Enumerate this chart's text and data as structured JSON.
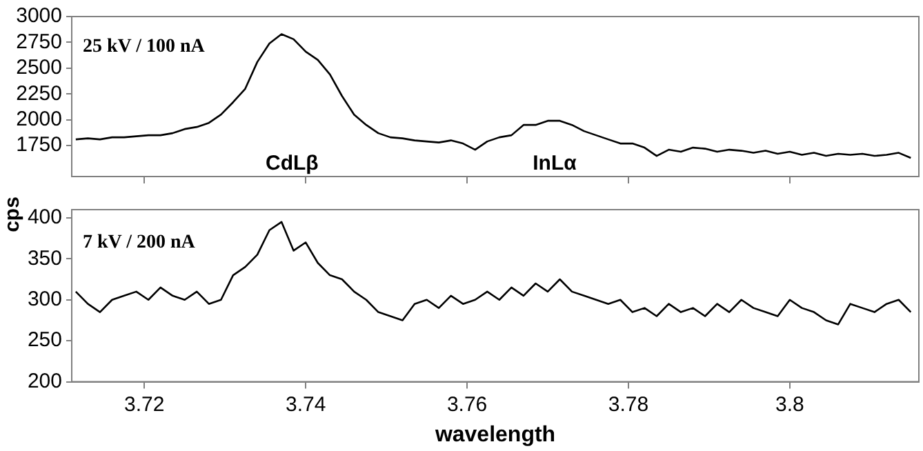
{
  "chart_data": [
    {
      "type": "line",
      "ylim": [
        1450,
        3000
      ],
      "yticks": [
        1750,
        2000,
        2250,
        2500,
        2750,
        3000
      ],
      "xlim": [
        3.711,
        3.816
      ],
      "xticks": [
        3.72,
        3.74,
        3.76,
        3.78,
        3.8
      ],
      "tick_labels": "y",
      "grid": false,
      "legend": false,
      "marker": "none",
      "x": [
        3.7115,
        3.713,
        3.7145,
        3.716,
        3.7175,
        3.719,
        3.7205,
        3.722,
        3.7235,
        3.725,
        3.7265,
        3.728,
        3.7295,
        3.731,
        3.7325,
        3.734,
        3.7355,
        3.737,
        3.7385,
        3.74,
        3.7415,
        3.743,
        3.7445,
        3.746,
        3.7475,
        3.749,
        3.7505,
        3.752,
        3.7535,
        3.755,
        3.7565,
        3.758,
        3.7595,
        3.761,
        3.7625,
        3.764,
        3.7655,
        3.767,
        3.7685,
        3.77,
        3.7715,
        3.773,
        3.7745,
        3.776,
        3.7775,
        3.779,
        3.7805,
        3.782,
        3.7835,
        3.785,
        3.7865,
        3.788,
        3.7895,
        3.791,
        3.7925,
        3.794,
        3.7955,
        3.797,
        3.7985,
        3.8,
        3.8015,
        3.803,
        3.8045,
        3.806,
        3.8075,
        3.809,
        3.8105,
        3.812,
        3.8135,
        3.815
      ],
      "series": [
        {
          "color": "#000000",
          "values": [
            1810,
            1820,
            1810,
            1830,
            1830,
            1840,
            1850,
            1850,
            1870,
            1910,
            1930,
            1970,
            2050,
            2170,
            2300,
            2560,
            2740,
            2830,
            2780,
            2660,
            2580,
            2440,
            2230,
            2050,
            1950,
            1870,
            1830,
            1820,
            1800,
            1790,
            1780,
            1800,
            1770,
            1710,
            1790,
            1830,
            1850,
            1950,
            1950,
            1990,
            1990,
            1950,
            1890,
            1850,
            1810,
            1770,
            1770,
            1730,
            1650,
            1710,
            1690,
            1730,
            1720,
            1690,
            1710,
            1700,
            1680,
            1700,
            1670,
            1690,
            1660,
            1680,
            1650,
            1670,
            1660,
            1670,
            1650,
            1660,
            1680,
            1630
          ]
        }
      ],
      "annotations": [
        "25 kV / 100 nA",
        "CdLβ",
        "InLα"
      ]
    },
    {
      "type": "line",
      "ylim": [
        200,
        410
      ],
      "yticks": [
        200,
        250,
        300,
        350,
        400
      ],
      "xlim": [
        3.711,
        3.816
      ],
      "xticks": [
        3.72,
        3.74,
        3.76,
        3.78,
        3.8
      ],
      "grid": false,
      "legend": false,
      "marker": "none",
      "xlabel": "wavelength",
      "ylabel": "cps",
      "x": [
        3.7115,
        3.713,
        3.7145,
        3.716,
        3.7175,
        3.719,
        3.7205,
        3.722,
        3.7235,
        3.725,
        3.7265,
        3.728,
        3.7295,
        3.731,
        3.7325,
        3.734,
        3.7355,
        3.737,
        3.7385,
        3.74,
        3.7415,
        3.743,
        3.7445,
        3.746,
        3.7475,
        3.749,
        3.7505,
        3.752,
        3.7535,
        3.755,
        3.7565,
        3.758,
        3.7595,
        3.761,
        3.7625,
        3.764,
        3.7655,
        3.767,
        3.7685,
        3.77,
        3.7715,
        3.773,
        3.7745,
        3.776,
        3.7775,
        3.779,
        3.7805,
        3.782,
        3.7835,
        3.785,
        3.7865,
        3.788,
        3.7895,
        3.791,
        3.7925,
        3.794,
        3.7955,
        3.797,
        3.7985,
        3.8,
        3.8015,
        3.803,
        3.8045,
        3.806,
        3.8075,
        3.809,
        3.8105,
        3.812,
        3.8135,
        3.815
      ],
      "series": [
        {
          "color": "#000000",
          "values": [
            310,
            295,
            285,
            300,
            305,
            310,
            300,
            315,
            305,
            300,
            310,
            295,
            300,
            330,
            340,
            355,
            385,
            395,
            360,
            370,
            345,
            330,
            325,
            310,
            300,
            285,
            280,
            275,
            295,
            300,
            290,
            305,
            295,
            300,
            310,
            300,
            315,
            305,
            320,
            310,
            325,
            310,
            305,
            300,
            295,
            300,
            285,
            290,
            280,
            295,
            285,
            290,
            280,
            295,
            285,
            300,
            290,
            285,
            280,
            300,
            290,
            285,
            275,
            270,
            295,
            290,
            285,
            295,
            300,
            285
          ]
        }
      ],
      "annotations": [
        "7 kV / 200 nA"
      ]
    }
  ]
}
